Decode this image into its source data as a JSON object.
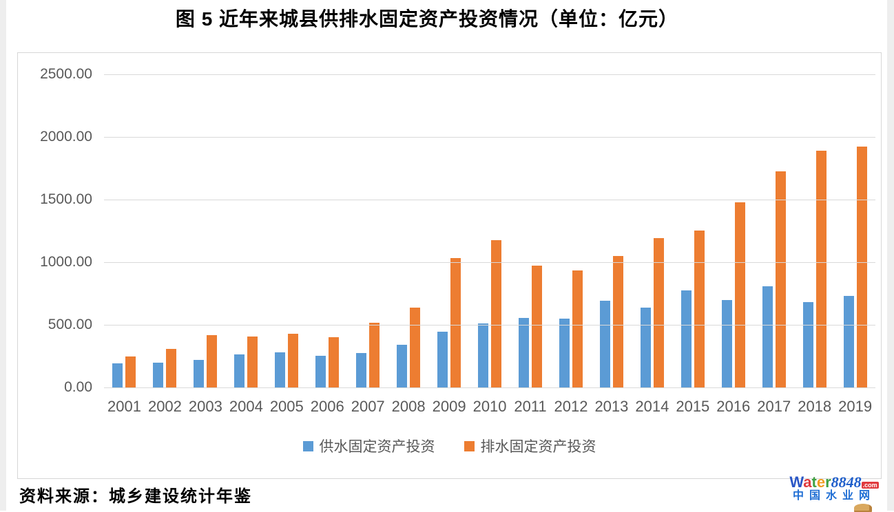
{
  "title": "图 5  近年来城县供排水固定资产投资情况（单位：亿元）",
  "footer": {
    "source_note": "资料来源：城乡建设统计年鉴"
  },
  "logo": {
    "word_letters": [
      {
        "ch": "W",
        "color": "#2a56c6"
      },
      {
        "ch": "a",
        "color": "#e03a3e"
      },
      {
        "ch": "t",
        "color": "#3fa142"
      },
      {
        "ch": "e",
        "color": "#f29c1f"
      },
      {
        "ch": "r",
        "color": "#3fa142"
      }
    ],
    "number": "8848",
    "dotcom": ".com",
    "tagline": "中国水业网",
    "tagline_color": "#1f6ed4"
  },
  "chart_data": {
    "type": "bar",
    "title": "图 5  近年来城县供排水固定资产投资情况（单位：亿元）",
    "xlabel": "",
    "ylabel": "",
    "categories": [
      "2001",
      "2002",
      "2003",
      "2004",
      "2005",
      "2006",
      "2007",
      "2008",
      "2009",
      "2010",
      "2011",
      "2012",
      "2013",
      "2014",
      "2015",
      "2016",
      "2017",
      "2018",
      "2019"
    ],
    "series": [
      {
        "name": "供水固定资产投资",
        "color": "#5B9BD5",
        "values": [
          190,
          200,
          220,
          265,
          280,
          250,
          275,
          340,
          445,
          510,
          555,
          550,
          690,
          640,
          775,
          700,
          805,
          680,
          730
        ]
      },
      {
        "name": "排水固定资产投资",
        "color": "#ED7D31",
        "values": [
          245,
          305,
          420,
          405,
          430,
          400,
          515,
          635,
          1035,
          1175,
          970,
          935,
          1050,
          1195,
          1250,
          1480,
          1725,
          1890,
          1925
        ]
      }
    ],
    "ylim": [
      0,
      2500
    ],
    "ytick_step": 500,
    "yticks": [
      "0.00",
      "500.00",
      "1000.00",
      "1500.00",
      "2000.00",
      "2500.00"
    ],
    "grid": true,
    "gridline_color": "#d9d9d9",
    "legend_position": "bottom"
  }
}
